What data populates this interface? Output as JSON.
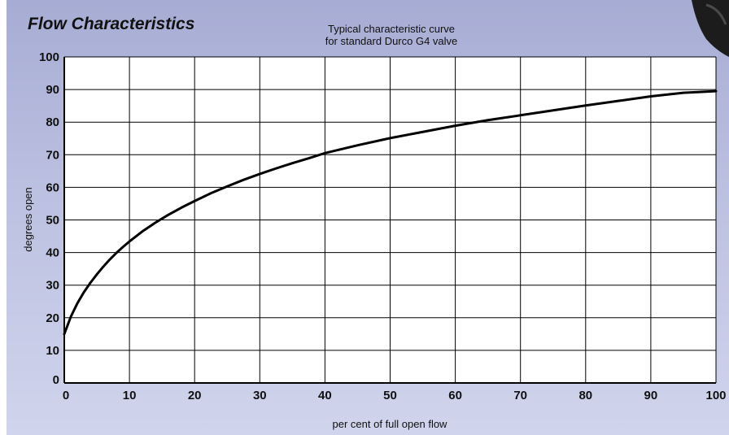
{
  "header": {
    "section_title": "Flow Characteristics"
  },
  "chart_data": {
    "type": "line",
    "title_lines": [
      "Typical characteristic curve",
      "for standard Durco G4 valve"
    ],
    "xlabel": "per cent of full open flow",
    "ylabel": "degrees open",
    "xlim": [
      0,
      100
    ],
    "ylim": [
      0,
      100
    ],
    "xticks": [
      0,
      10,
      20,
      30,
      40,
      50,
      60,
      70,
      80,
      90,
      100
    ],
    "yticks": [
      0,
      10,
      20,
      30,
      40,
      50,
      60,
      70,
      80,
      90,
      100
    ],
    "grid": true,
    "legend": "none",
    "series": [
      {
        "x": [
          0,
          1,
          2,
          3,
          4,
          5,
          6,
          7,
          8,
          9,
          10,
          12,
          14,
          16,
          18,
          20,
          22.5,
          25,
          27.5,
          30,
          32.5,
          35,
          37.5,
          40,
          45,
          50,
          55,
          60,
          65,
          70,
          75,
          80,
          85,
          90,
          95,
          100
        ],
        "y": [
          15,
          20.3,
          24.4,
          27.8,
          30.7,
          33.3,
          35.7,
          37.9,
          39.9,
          41.7,
          43.4,
          46.5,
          49.2,
          51.6,
          53.8,
          55.8,
          58.2,
          60.3,
          62.3,
          64.1,
          65.8,
          67.4,
          68.9,
          70.5,
          72.9,
          75.1,
          77.0,
          78.9,
          80.6,
          82.1,
          83.6,
          85.1,
          86.5,
          87.9,
          89.0,
          89.5
        ]
      }
    ],
    "colors": {
      "background_top": "#a7acd4",
      "background_bottom": "#d0d4ec",
      "plot_fill": "#ffffff",
      "grid": "#000000",
      "curve": "#000000"
    }
  }
}
